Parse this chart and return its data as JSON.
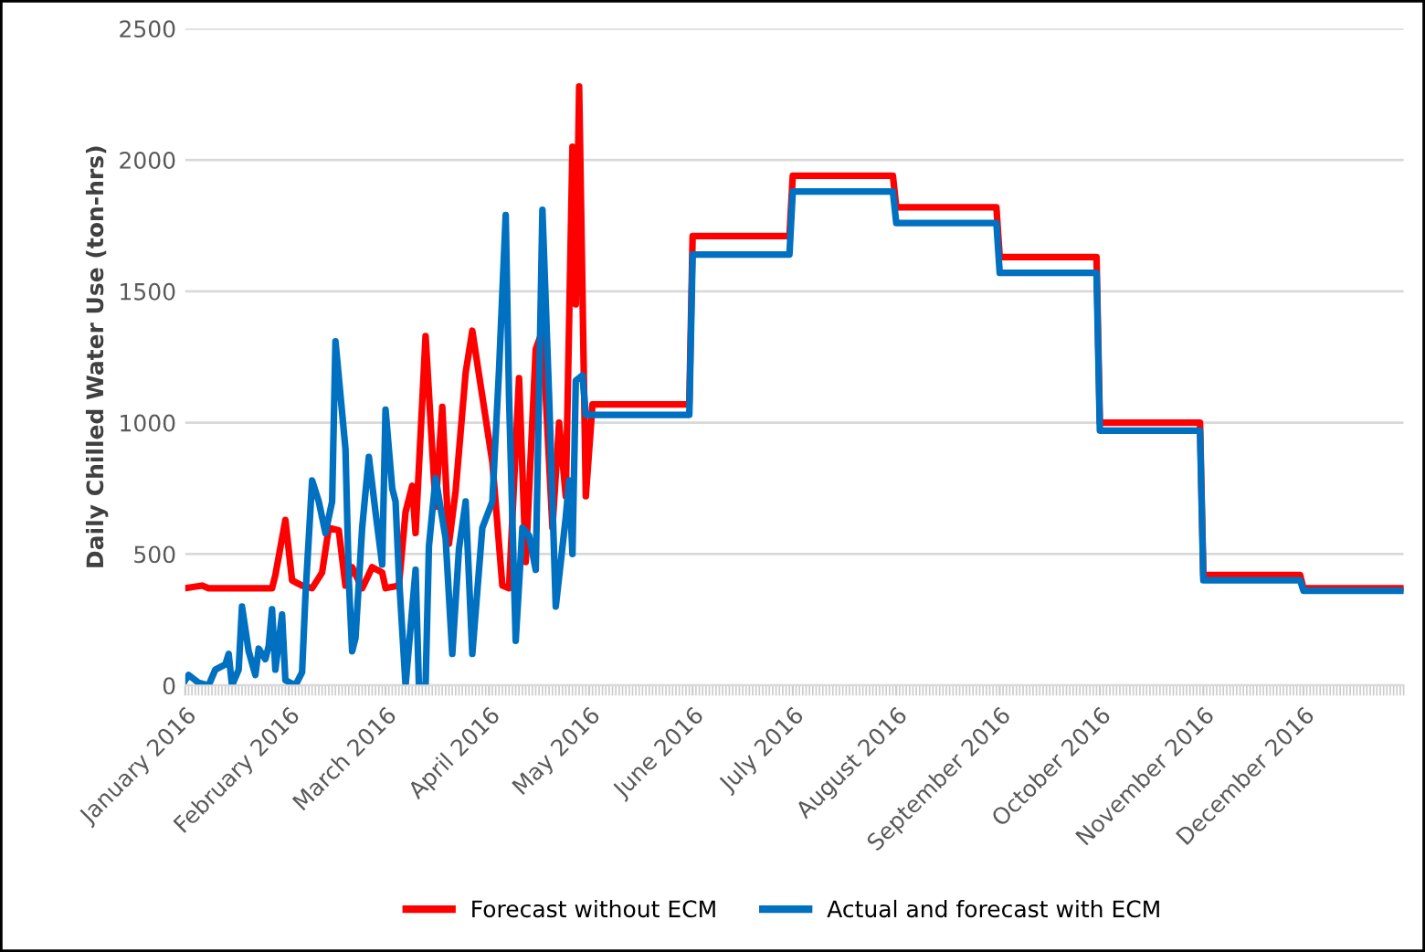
{
  "chart_data": {
    "type": "line",
    "ylabel": "Daily Chilled Water Use (ton-hrs)",
    "xlim": [
      "2016-01-01",
      "2016-12-31"
    ],
    "ylim": [
      0,
      2500
    ],
    "yticks": [
      0,
      500,
      1000,
      1500,
      2000,
      2500
    ],
    "xticks": [
      {
        "value": "2016-01-01",
        "label": "January 2016"
      },
      {
        "value": "2016-02-01",
        "label": "February 2016"
      },
      {
        "value": "2016-03-01",
        "label": "March 2016"
      },
      {
        "value": "2016-04-01",
        "label": "April 2016"
      },
      {
        "value": "2016-05-01",
        "label": "May 2016"
      },
      {
        "value": "2016-06-01",
        "label": "June 2016"
      },
      {
        "value": "2016-07-01",
        "label": "July 2016"
      },
      {
        "value": "2016-08-01",
        "label": "August 2016"
      },
      {
        "value": "2016-09-01",
        "label": "September 2016"
      },
      {
        "value": "2016-10-01",
        "label": "October 2016"
      },
      {
        "value": "2016-11-01",
        "label": "November 2016"
      },
      {
        "value": "2016-12-01",
        "label": "December 2016"
      }
    ],
    "grid": "y",
    "legend": "bottom",
    "marker": "none",
    "line_style": "solid",
    "series": [
      {
        "name": "Forecast without ECM",
        "color": "#ff0000",
        "x": [
          "2016-01-01",
          "2016-01-06",
          "2016-01-08",
          "2016-01-27",
          "2016-01-28",
          "2016-01-31",
          "2016-02-02",
          "2016-02-05",
          "2016-02-08",
          "2016-02-11",
          "2016-02-13",
          "2016-02-16",
          "2016-02-18",
          "2016-02-20",
          "2016-02-23",
          "2016-02-26",
          "2016-02-29",
          "2016-03-01",
          "2016-03-05",
          "2016-03-07",
          "2016-03-09",
          "2016-03-10",
          "2016-03-13",
          "2016-03-16",
          "2016-03-18",
          "2016-03-20",
          "2016-03-22",
          "2016-03-25",
          "2016-03-27",
          "2016-03-30",
          "2016-04-02",
          "2016-04-05",
          "2016-04-07",
          "2016-04-10",
          "2016-04-12",
          "2016-04-15",
          "2016-04-17",
          "2016-04-20",
          "2016-04-22",
          "2016-04-24",
          "2016-04-26",
          "2016-04-27",
          "2016-04-28",
          "2016-04-30",
          "2016-05-02",
          "2016-05-31",
          "2016-06-01",
          "2016-06-30",
          "2016-07-01",
          "2016-07-31",
          "2016-08-01",
          "2016-08-31",
          "2016-09-01",
          "2016-09-30",
          "2016-10-01",
          "2016-10-31",
          "2016-11-01",
          "2016-11-30",
          "2016-12-01",
          "2016-12-31"
        ],
        "values": [
          370,
          380,
          370,
          370,
          420,
          630,
          400,
          380,
          370,
          430,
          600,
          590,
          380,
          450,
          370,
          450,
          430,
          370,
          380,
          660,
          760,
          580,
          1330,
          680,
          1060,
          540,
          740,
          1190,
          1350,
          1100,
          850,
          380,
          370,
          1170,
          470,
          1280,
          1350,
          600,
          1000,
          720,
          2050,
          1450,
          2280,
          720,
          1070,
          1070,
          1710,
          1710,
          1940,
          1940,
          1820,
          1820,
          1630,
          1630,
          1000,
          1000,
          420,
          420,
          370,
          370
        ]
      },
      {
        "name": "Actual and forecast with ECM",
        "color": "#0070c0",
        "x": [
          "2016-01-01",
          "2016-01-02",
          "2016-01-05",
          "2016-01-08",
          "2016-01-10",
          "2016-01-13",
          "2016-01-14",
          "2016-01-15",
          "2016-01-17",
          "2016-01-18",
          "2016-01-20",
          "2016-01-22",
          "2016-01-23",
          "2016-01-25",
          "2016-01-26",
          "2016-01-27",
          "2016-01-28",
          "2016-01-30",
          "2016-01-31",
          "2016-02-03",
          "2016-02-05",
          "2016-02-06",
          "2016-02-08",
          "2016-02-10",
          "2016-02-12",
          "2016-02-14",
          "2016-02-15",
          "2016-02-18",
          "2016-02-19",
          "2016-02-20",
          "2016-02-21",
          "2016-02-23",
          "2016-02-25",
          "2016-02-27",
          "2016-02-29",
          "2016-03-01",
          "2016-03-03",
          "2016-03-04",
          "2016-03-05",
          "2016-03-07",
          "2016-03-10",
          "2016-03-11",
          "2016-03-13",
          "2016-03-14",
          "2016-03-16",
          "2016-03-19",
          "2016-03-21",
          "2016-03-23",
          "2016-03-25",
          "2016-03-27",
          "2016-03-30",
          "2016-04-02",
          "2016-04-04",
          "2016-04-06",
          "2016-04-07",
          "2016-04-09",
          "2016-04-11",
          "2016-04-13",
          "2016-04-15",
          "2016-04-17",
          "2016-04-19",
          "2016-04-21",
          "2016-04-24",
          "2016-04-25",
          "2016-04-26",
          "2016-04-27",
          "2016-04-29",
          "2016-04-30",
          "2016-05-31",
          "2016-06-01",
          "2016-06-30",
          "2016-07-01",
          "2016-07-31",
          "2016-08-01",
          "2016-08-31",
          "2016-09-01",
          "2016-09-30",
          "2016-10-01",
          "2016-10-31",
          "2016-11-01",
          "2016-11-30",
          "2016-12-01",
          "2016-12-31"
        ],
        "values": [
          20,
          40,
          10,
          0,
          60,
          80,
          120,
          0,
          60,
          300,
          130,
          40,
          140,
          100,
          150,
          290,
          60,
          270,
          20,
          0,
          50,
          340,
          780,
          700,
          580,
          700,
          1310,
          900,
          400,
          130,
          180,
          600,
          870,
          660,
          460,
          1050,
          750,
          700,
          420,
          0,
          440,
          0,
          0,
          530,
          790,
          560,
          120,
          520,
          700,
          120,
          600,
          700,
          1200,
          1790,
          1100,
          170,
          600,
          570,
          440,
          1810,
          1100,
          300,
          640,
          780,
          500,
          1160,
          1180,
          1030,
          1030,
          1640,
          1640,
          1880,
          1880,
          1760,
          1760,
          1570,
          1570,
          970,
          970,
          400,
          400,
          360,
          360
        ]
      }
    ]
  }
}
